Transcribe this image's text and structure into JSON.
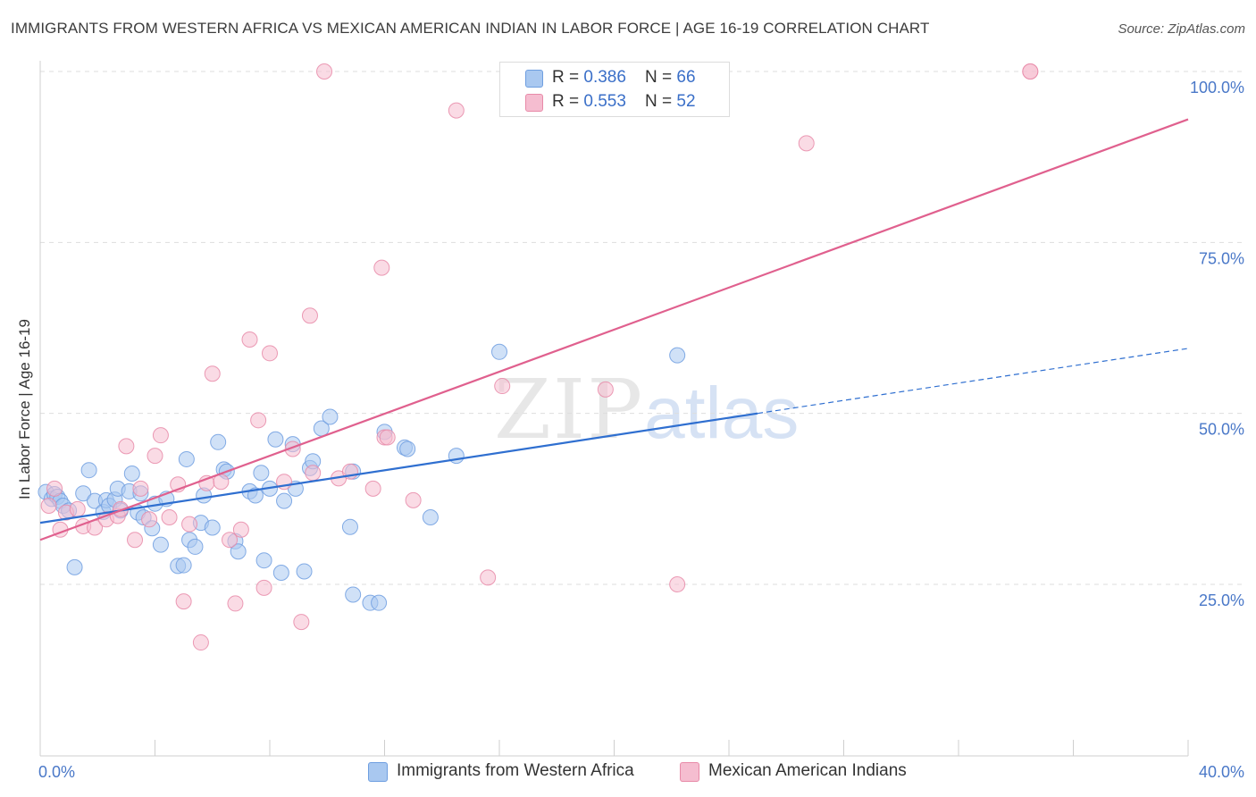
{
  "title": "IMMIGRANTS FROM WESTERN AFRICA VS MEXICAN AMERICAN INDIAN IN LABOR FORCE | AGE 16-19 CORRELATION CHART",
  "source": "Source: ZipAtlas.com",
  "watermark": {
    "zip": "ZIP",
    "atlas": "atlas"
  },
  "legend": {
    "blue": {
      "r_label": "R = ",
      "r": "0.386",
      "n_label": "N = ",
      "n": "66"
    },
    "pink": {
      "r_label": "R = ",
      "r": "0.553",
      "n_label": "N = ",
      "n": "52"
    }
  },
  "colors": {
    "blue_fill": "#a9c8f0",
    "blue_stroke": "#6e9ee0",
    "blue_line": "#2f6fd0",
    "pink_fill": "#f5bdd0",
    "pink_stroke": "#e88aa8",
    "pink_line": "#e0608e",
    "grid": "#dddddd",
    "tick_text": "#4a78c8"
  },
  "chart_data": {
    "type": "scatter",
    "title": "IMMIGRANTS FROM WESTERN AFRICA VS MEXICAN AMERICAN INDIAN IN LABOR FORCE | AGE 16-19 CORRELATION CHART",
    "xlabel": "",
    "ylabel": "In Labor Force | Age 16-19",
    "xlim": [
      0,
      40
    ],
    "ylim": [
      0,
      105
    ],
    "x_tick_labels": [
      "0.0%",
      "40.0%"
    ],
    "y_ticks": [
      25,
      50,
      75,
      100
    ],
    "y_tick_labels": [
      "25.0%",
      "50.0%",
      "75.0%",
      "100.0%"
    ],
    "grid": true,
    "series": [
      {
        "name": "Immigrants from Western Africa",
        "color": "blue",
        "r": 0.386,
        "n": 66,
        "trend": {
          "x0": 0,
          "y0": 34.0,
          "x1": 25.0,
          "y1": 50.0,
          "dash_x1": 40.0,
          "dash_y1": 59.5
        },
        "points": [
          [
            0.2,
            38.5
          ],
          [
            0.4,
            37.5
          ],
          [
            0.5,
            38.2
          ],
          [
            0.6,
            37.8
          ],
          [
            0.7,
            37.2
          ],
          [
            0.8,
            36.5
          ],
          [
            1.0,
            35.8
          ],
          [
            1.2,
            27.5
          ],
          [
            1.5,
            38.3
          ],
          [
            1.7,
            41.7
          ],
          [
            1.9,
            37.2
          ],
          [
            2.2,
            35.6
          ],
          [
            2.3,
            37.3
          ],
          [
            2.4,
            36.5
          ],
          [
            2.6,
            37.4
          ],
          [
            2.7,
            39.0
          ],
          [
            2.8,
            35.8
          ],
          [
            3.1,
            38.6
          ],
          [
            3.2,
            41.2
          ],
          [
            3.4,
            35.5
          ],
          [
            3.5,
            38.3
          ],
          [
            3.6,
            34.8
          ],
          [
            3.9,
            33.2
          ],
          [
            4.0,
            36.8
          ],
          [
            4.2,
            30.8
          ],
          [
            4.4,
            37.5
          ],
          [
            4.8,
            27.7
          ],
          [
            5.0,
            27.8
          ],
          [
            5.1,
            43.3
          ],
          [
            5.2,
            31.5
          ],
          [
            5.4,
            30.5
          ],
          [
            5.6,
            34.0
          ],
          [
            5.7,
            38.0
          ],
          [
            6.0,
            33.3
          ],
          [
            6.2,
            45.8
          ],
          [
            6.4,
            41.8
          ],
          [
            6.5,
            41.5
          ],
          [
            6.8,
            31.3
          ],
          [
            6.9,
            29.8
          ],
          [
            7.3,
            38.6
          ],
          [
            7.5,
            38.0
          ],
          [
            7.7,
            41.3
          ],
          [
            7.8,
            28.5
          ],
          [
            8.0,
            39.0
          ],
          [
            8.2,
            46.2
          ],
          [
            8.4,
            26.7
          ],
          [
            8.5,
            37.2
          ],
          [
            8.8,
            45.5
          ],
          [
            8.9,
            39.0
          ],
          [
            9.2,
            26.9
          ],
          [
            9.4,
            42.0
          ],
          [
            9.5,
            43.0
          ],
          [
            9.8,
            47.8
          ],
          [
            10.1,
            49.5
          ],
          [
            10.8,
            33.4
          ],
          [
            10.9,
            41.5
          ],
          [
            10.9,
            23.5
          ],
          [
            11.5,
            22.3
          ],
          [
            11.8,
            22.3
          ],
          [
            12.0,
            47.3
          ],
          [
            12.7,
            45.0
          ],
          [
            12.8,
            44.8
          ],
          [
            13.6,
            34.8
          ],
          [
            14.5,
            43.8
          ],
          [
            16.0,
            59.0
          ],
          [
            22.2,
            58.5
          ]
        ]
      },
      {
        "name": "Mexican American Indians",
        "color": "pink",
        "r": 0.553,
        "n": 52,
        "trend": {
          "x0": 0,
          "y0": 31.5,
          "x1": 40.0,
          "y1": 93.0
        },
        "points": [
          [
            0.3,
            36.5
          ],
          [
            0.5,
            39.0
          ],
          [
            0.7,
            33.0
          ],
          [
            0.9,
            35.5
          ],
          [
            1.3,
            36.0
          ],
          [
            1.5,
            33.5
          ],
          [
            1.9,
            33.3
          ],
          [
            2.3,
            34.5
          ],
          [
            2.7,
            35.0
          ],
          [
            2.8,
            36.0
          ],
          [
            3.0,
            45.2
          ],
          [
            3.3,
            31.5
          ],
          [
            3.5,
            39.0
          ],
          [
            3.8,
            34.5
          ],
          [
            4.0,
            43.8
          ],
          [
            4.2,
            46.8
          ],
          [
            4.5,
            34.8
          ],
          [
            4.8,
            39.6
          ],
          [
            5.0,
            22.5
          ],
          [
            5.2,
            33.8
          ],
          [
            5.6,
            16.5
          ],
          [
            5.8,
            39.8
          ],
          [
            6.0,
            55.8
          ],
          [
            6.3,
            40.0
          ],
          [
            6.6,
            31.5
          ],
          [
            6.8,
            22.2
          ],
          [
            7.0,
            33.0
          ],
          [
            7.3,
            60.8
          ],
          [
            7.6,
            49.0
          ],
          [
            7.8,
            24.5
          ],
          [
            8.0,
            58.8
          ],
          [
            8.5,
            40.0
          ],
          [
            8.8,
            44.8
          ],
          [
            9.1,
            19.5
          ],
          [
            9.4,
            64.3
          ],
          [
            9.5,
            41.3
          ],
          [
            9.9,
            100.0
          ],
          [
            10.4,
            40.5
          ],
          [
            10.8,
            41.5
          ],
          [
            11.6,
            39.0
          ],
          [
            11.9,
            71.3
          ],
          [
            12.0,
            46.5
          ],
          [
            12.1,
            46.5
          ],
          [
            13.0,
            37.3
          ],
          [
            14.5,
            94.3
          ],
          [
            15.6,
            26.0
          ],
          [
            16.1,
            54.0
          ],
          [
            19.7,
            53.5
          ],
          [
            22.2,
            25.0
          ],
          [
            26.7,
            89.5
          ],
          [
            34.5,
            100.0
          ],
          [
            34.5,
            100.0
          ]
        ]
      }
    ]
  }
}
